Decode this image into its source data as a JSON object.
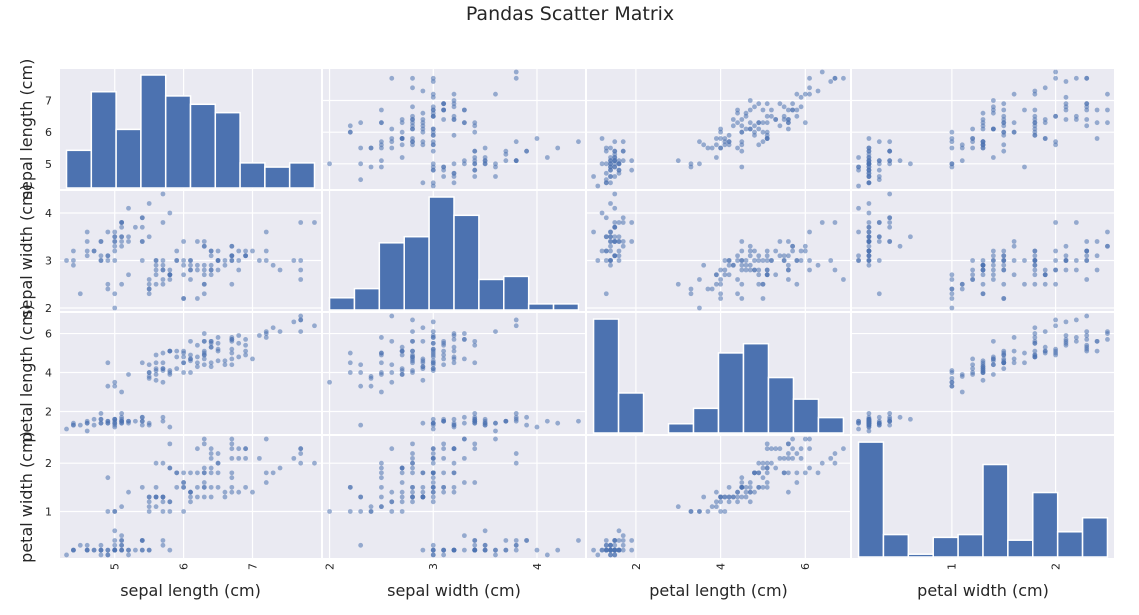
{
  "chart_data": {
    "type": "scatter_matrix",
    "title": "Pandas Scatter Matrix",
    "variables": [
      "sepal length (cm)",
      "sepal width (cm)",
      "petal length (cm)",
      "petal width (cm)"
    ],
    "ranges": [
      [
        4.3,
        7.9
      ],
      [
        2.0,
        4.4
      ],
      [
        1.0,
        6.9
      ],
      [
        0.1,
        2.5
      ]
    ],
    "ticks": [
      {
        "values": [
          5,
          6,
          7
        ],
        "labels": [
          "5",
          "6",
          "7"
        ]
      },
      {
        "values": [
          2,
          3,
          4
        ],
        "labels": [
          "2",
          "3",
          "4"
        ]
      },
      {
        "values": [
          2,
          4,
          6
        ],
        "labels": [
          "2",
          "4",
          "6"
        ]
      },
      {
        "values": [
          1,
          2
        ],
        "labels": [
          "1",
          "2"
        ]
      }
    ],
    "diagonal": "hist",
    "hist_bins": 10,
    "grid": true,
    "colors": {
      "marker": "#4c72b0",
      "background": "#eaeaf2",
      "grid": "#ffffff"
    },
    "samples": [
      [
        5.1,
        3.5,
        1.4,
        0.2
      ],
      [
        4.9,
        3.0,
        1.4,
        0.2
      ],
      [
        4.7,
        3.2,
        1.3,
        0.2
      ],
      [
        4.6,
        3.1,
        1.5,
        0.2
      ],
      [
        5.0,
        3.6,
        1.4,
        0.2
      ],
      [
        5.4,
        3.9,
        1.7,
        0.4
      ],
      [
        4.6,
        3.4,
        1.4,
        0.3
      ],
      [
        5.0,
        3.4,
        1.5,
        0.2
      ],
      [
        4.4,
        2.9,
        1.4,
        0.2
      ],
      [
        4.9,
        3.1,
        1.5,
        0.1
      ],
      [
        5.4,
        3.7,
        1.5,
        0.2
      ],
      [
        4.8,
        3.4,
        1.6,
        0.2
      ],
      [
        4.8,
        3.0,
        1.4,
        0.1
      ],
      [
        4.3,
        3.0,
        1.1,
        0.1
      ],
      [
        5.8,
        4.0,
        1.2,
        0.2
      ],
      [
        5.7,
        4.4,
        1.5,
        0.4
      ],
      [
        5.4,
        3.9,
        1.3,
        0.4
      ],
      [
        5.1,
        3.5,
        1.4,
        0.3
      ],
      [
        5.7,
        3.8,
        1.7,
        0.3
      ],
      [
        5.1,
        3.8,
        1.5,
        0.3
      ],
      [
        5.4,
        3.4,
        1.7,
        0.2
      ],
      [
        5.1,
        3.7,
        1.5,
        0.4
      ],
      [
        4.6,
        3.6,
        1.0,
        0.2
      ],
      [
        5.1,
        3.3,
        1.7,
        0.5
      ],
      [
        4.8,
        3.4,
        1.9,
        0.2
      ],
      [
        5.0,
        3.0,
        1.6,
        0.2
      ],
      [
        5.0,
        3.4,
        1.6,
        0.4
      ],
      [
        5.2,
        3.5,
        1.5,
        0.2
      ],
      [
        5.2,
        3.4,
        1.4,
        0.2
      ],
      [
        4.7,
        3.2,
        1.6,
        0.2
      ],
      [
        4.8,
        3.1,
        1.6,
        0.2
      ],
      [
        5.4,
        3.4,
        1.5,
        0.4
      ],
      [
        5.2,
        4.1,
        1.5,
        0.1
      ],
      [
        5.5,
        4.2,
        1.4,
        0.2
      ],
      [
        4.9,
        3.1,
        1.5,
        0.2
      ],
      [
        5.0,
        3.2,
        1.2,
        0.2
      ],
      [
        5.5,
        3.5,
        1.3,
        0.2
      ],
      [
        4.9,
        3.6,
        1.4,
        0.1
      ],
      [
        4.4,
        3.0,
        1.3,
        0.2
      ],
      [
        5.1,
        3.4,
        1.5,
        0.2
      ],
      [
        5.0,
        3.5,
        1.3,
        0.3
      ],
      [
        4.5,
        2.3,
        1.3,
        0.3
      ],
      [
        4.4,
        3.2,
        1.3,
        0.2
      ],
      [
        5.0,
        3.5,
        1.6,
        0.6
      ],
      [
        5.1,
        3.8,
        1.9,
        0.4
      ],
      [
        4.8,
        3.0,
        1.4,
        0.3
      ],
      [
        5.1,
        3.8,
        1.6,
        0.2
      ],
      [
        4.6,
        3.2,
        1.4,
        0.2
      ],
      [
        5.3,
        3.7,
        1.5,
        0.2
      ],
      [
        5.0,
        3.3,
        1.4,
        0.2
      ],
      [
        7.0,
        3.2,
        4.7,
        1.4
      ],
      [
        6.4,
        3.2,
        4.5,
        1.5
      ],
      [
        6.9,
        3.1,
        4.9,
        1.5
      ],
      [
        5.5,
        2.3,
        4.0,
        1.3
      ],
      [
        6.5,
        2.8,
        4.6,
        1.5
      ],
      [
        5.7,
        2.8,
        4.5,
        1.3
      ],
      [
        6.3,
        3.3,
        4.7,
        1.6
      ],
      [
        4.9,
        2.4,
        3.3,
        1.0
      ],
      [
        6.6,
        2.9,
        4.6,
        1.3
      ],
      [
        5.2,
        2.7,
        3.9,
        1.4
      ],
      [
        5.0,
        2.0,
        3.5,
        1.0
      ],
      [
        5.9,
        3.0,
        4.2,
        1.5
      ],
      [
        6.0,
        2.2,
        4.0,
        1.0
      ],
      [
        6.1,
        2.9,
        4.7,
        1.4
      ],
      [
        5.6,
        2.9,
        3.6,
        1.3
      ],
      [
        6.7,
        3.1,
        4.4,
        1.4
      ],
      [
        5.6,
        3.0,
        4.5,
        1.5
      ],
      [
        5.8,
        2.7,
        4.1,
        1.0
      ],
      [
        6.2,
        2.2,
        4.5,
        1.5
      ],
      [
        5.6,
        2.5,
        3.9,
        1.1
      ],
      [
        5.9,
        3.2,
        4.8,
        1.8
      ],
      [
        6.1,
        2.8,
        4.0,
        1.3
      ],
      [
        6.3,
        2.5,
        4.9,
        1.5
      ],
      [
        6.1,
        2.8,
        4.7,
        1.2
      ],
      [
        6.4,
        2.9,
        4.3,
        1.3
      ],
      [
        6.6,
        3.0,
        4.4,
        1.4
      ],
      [
        6.8,
        2.8,
        4.8,
        1.4
      ],
      [
        6.7,
        3.0,
        5.0,
        1.7
      ],
      [
        6.0,
        2.9,
        4.5,
        1.5
      ],
      [
        5.7,
        2.6,
        3.5,
        1.0
      ],
      [
        5.5,
        2.4,
        3.8,
        1.1
      ],
      [
        5.5,
        2.4,
        3.7,
        1.0
      ],
      [
        5.8,
        2.7,
        3.9,
        1.2
      ],
      [
        6.0,
        2.7,
        5.1,
        1.6
      ],
      [
        5.4,
        3.0,
        4.5,
        1.5
      ],
      [
        6.0,
        3.4,
        4.5,
        1.6
      ],
      [
        6.7,
        3.1,
        4.7,
        1.5
      ],
      [
        6.3,
        2.3,
        4.4,
        1.3
      ],
      [
        5.6,
        3.0,
        4.1,
        1.3
      ],
      [
        5.5,
        2.5,
        4.0,
        1.3
      ],
      [
        5.5,
        2.6,
        4.4,
        1.2
      ],
      [
        6.1,
        3.0,
        4.6,
        1.4
      ],
      [
        5.8,
        2.6,
        4.0,
        1.2
      ],
      [
        5.0,
        2.3,
        3.3,
        1.0
      ],
      [
        5.6,
        2.7,
        4.2,
        1.3
      ],
      [
        5.7,
        3.0,
        4.2,
        1.2
      ],
      [
        5.7,
        2.9,
        4.2,
        1.3
      ],
      [
        6.2,
        2.9,
        4.3,
        1.3
      ],
      [
        5.1,
        2.5,
        3.0,
        1.1
      ],
      [
        5.7,
        2.8,
        4.1,
        1.3
      ],
      [
        6.3,
        3.3,
        6.0,
        2.5
      ],
      [
        5.8,
        2.7,
        5.1,
        1.9
      ],
      [
        7.1,
        3.0,
        5.9,
        2.1
      ],
      [
        6.3,
        2.9,
        5.6,
        1.8
      ],
      [
        6.5,
        3.0,
        5.8,
        2.2
      ],
      [
        7.6,
        3.0,
        6.6,
        2.1
      ],
      [
        4.9,
        2.5,
        4.5,
        1.7
      ],
      [
        7.3,
        2.9,
        6.3,
        1.8
      ],
      [
        6.7,
        2.5,
        5.8,
        1.8
      ],
      [
        7.2,
        3.6,
        6.1,
        2.5
      ],
      [
        6.5,
        3.2,
        5.1,
        2.0
      ],
      [
        6.4,
        2.7,
        5.3,
        1.9
      ],
      [
        6.8,
        3.0,
        5.5,
        2.1
      ],
      [
        5.7,
        2.5,
        5.0,
        2.0
      ],
      [
        5.8,
        2.8,
        5.1,
        2.4
      ],
      [
        6.4,
        3.2,
        5.3,
        2.3
      ],
      [
        6.5,
        3.0,
        5.5,
        1.8
      ],
      [
        7.7,
        3.8,
        6.7,
        2.2
      ],
      [
        7.7,
        2.6,
        6.9,
        2.3
      ],
      [
        6.0,
        2.2,
        5.0,
        1.5
      ],
      [
        6.9,
        3.2,
        5.7,
        2.3
      ],
      [
        5.6,
        2.8,
        4.9,
        2.0
      ],
      [
        7.7,
        2.8,
        6.7,
        2.0
      ],
      [
        6.3,
        2.7,
        4.9,
        1.8
      ],
      [
        6.7,
        3.3,
        5.7,
        2.1
      ],
      [
        7.2,
        3.2,
        6.0,
        1.8
      ],
      [
        6.2,
        2.8,
        4.8,
        1.8
      ],
      [
        6.1,
        3.0,
        4.9,
        1.8
      ],
      [
        6.4,
        2.8,
        5.6,
        2.1
      ],
      [
        7.2,
        3.0,
        5.8,
        1.6
      ],
      [
        7.4,
        2.8,
        6.1,
        1.9
      ],
      [
        7.9,
        3.8,
        6.4,
        2.0
      ],
      [
        6.4,
        2.8,
        5.6,
        2.2
      ],
      [
        6.3,
        2.8,
        5.1,
        1.5
      ],
      [
        6.1,
        2.6,
        5.6,
        1.4
      ],
      [
        7.7,
        3.0,
        6.1,
        2.3
      ],
      [
        6.3,
        3.4,
        5.6,
        2.4
      ],
      [
        6.4,
        3.1,
        5.5,
        1.8
      ],
      [
        6.0,
        3.0,
        4.8,
        1.8
      ],
      [
        6.9,
        3.1,
        5.4,
        2.1
      ],
      [
        6.7,
        3.1,
        5.6,
        2.4
      ],
      [
        6.9,
        3.1,
        5.1,
        2.3
      ],
      [
        5.8,
        2.7,
        5.1,
        1.9
      ],
      [
        6.8,
        3.2,
        5.9,
        2.3
      ],
      [
        6.7,
        3.3,
        5.7,
        2.5
      ],
      [
        6.7,
        3.0,
        5.2,
        2.3
      ],
      [
        6.3,
        2.5,
        5.0,
        1.9
      ],
      [
        6.5,
        3.0,
        5.2,
        2.0
      ],
      [
        6.2,
        3.4,
        5.4,
        2.3
      ],
      [
        5.9,
        3.0,
        5.1,
        1.8
      ]
    ]
  }
}
